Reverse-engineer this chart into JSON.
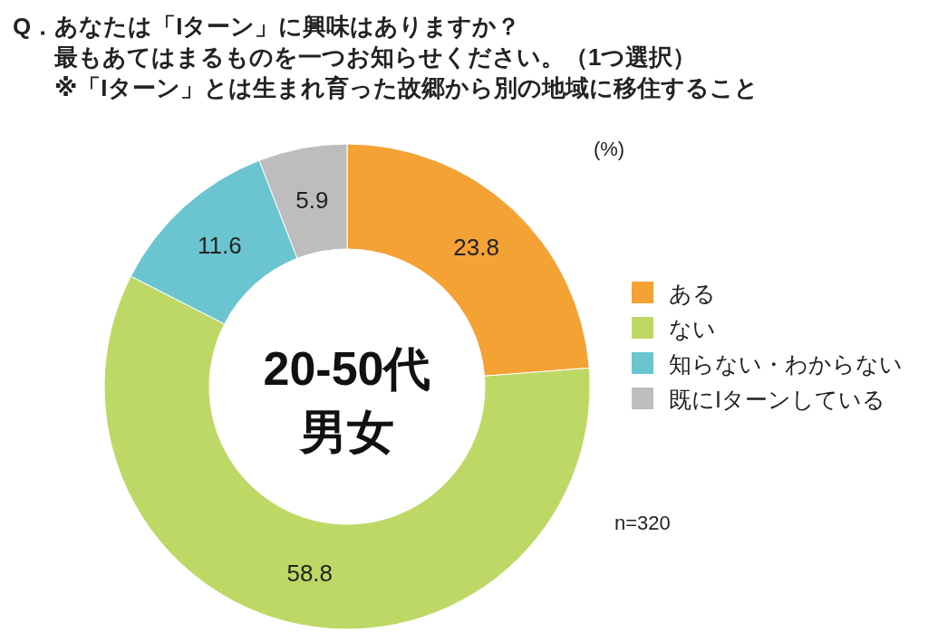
{
  "chart_data": {
    "type": "donut",
    "title": "Q．あなたは「Iターン」に興味はありますか？",
    "subtitle": "最もあてはまるものを一つお知らせください。（1つ選択）",
    "categories": [
      "ある",
      "ない",
      "知らない・わからない",
      "既にIターンしている"
    ],
    "values": [
      23.8,
      58.8,
      11.6,
      5.9
    ],
    "colors": [
      "#f4a234",
      "#bdd865",
      "#6ac5d0",
      "#bdbdbd"
    ],
    "data_labels": true,
    "legend": "right",
    "annotations": [
      "※「Iターン」とは生まれ育った故郷から別の地域に移住すること",
      "20-50代",
      "男女",
      "(%)",
      "n=320"
    ]
  }
}
